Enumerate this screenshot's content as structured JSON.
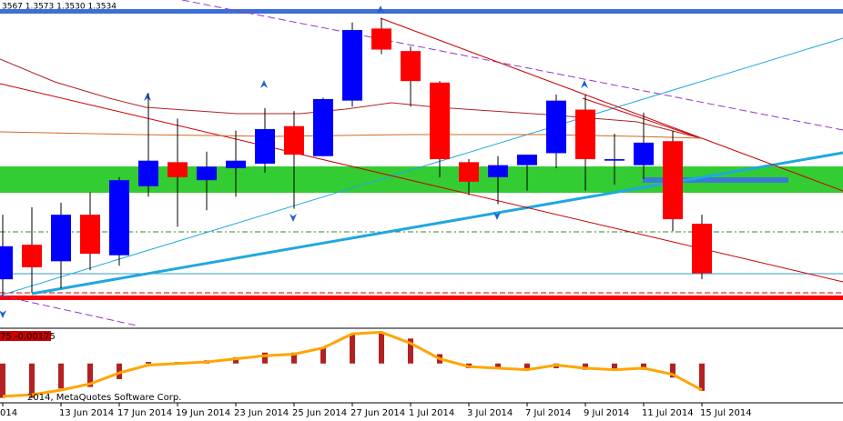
{
  "chart_data": [
    {
      "type": "candlestick",
      "title": "3567 1.3573 1.3530 1.3534",
      "categories": [
        "014",
        null,
        "13 Jun 2014",
        null,
        "17 Jun 2014",
        null,
        "19 Jun 2014",
        null,
        "23 Jun 2014",
        null,
        "25 Jun 2014",
        null,
        "27 Jun 2014",
        null,
        "1 Jul 2014",
        null,
        "3 Jul 2014",
        null,
        "7 Jul 2014",
        null,
        "9 Jul 2014",
        null,
        "11 Jul 2014",
        null,
        "15 Jul 2014"
      ],
      "open": [
        1.353,
        1.3553,
        1.3542,
        1.3573,
        1.3546,
        1.3592,
        1.3608,
        1.3596,
        1.3604,
        1.3607,
        1.3632,
        1.3612,
        1.3649,
        1.3697,
        1.3682,
        1.3661,
        1.3608,
        1.3598,
        1.3606,
        1.3614,
        1.3643,
        1.3609,
        1.3606,
        1.3622,
        1.3567
      ],
      "high": [
        1.3573,
        1.3578,
        1.3581,
        1.3588,
        1.3598,
        1.3654,
        1.3637,
        1.3615,
        1.3629,
        1.3644,
        1.3642,
        1.3651,
        1.3701,
        1.3704,
        1.3685,
        1.3662,
        1.361,
        1.3612,
        1.3613,
        1.3653,
        1.3653,
        1.3627,
        1.3641,
        1.3629,
        1.3573
      ],
      "low": [
        1.3519,
        1.3521,
        1.3524,
        1.3536,
        1.3539,
        1.3585,
        1.3565,
        1.3576,
        1.3585,
        1.3601,
        1.3577,
        1.3612,
        1.3645,
        1.368,
        1.3645,
        1.3598,
        1.3586,
        1.358,
        1.3589,
        1.3604,
        1.3589,
        1.3593,
        1.3597,
        1.3562,
        1.353
      ],
      "close": [
        1.3552,
        1.3538,
        1.3573,
        1.3547,
        1.3596,
        1.3609,
        1.3598,
        1.3605,
        1.3609,
        1.363,
        1.3613,
        1.365,
        1.3696,
        1.3683,
        1.3662,
        1.361,
        1.3595,
        1.3606,
        1.3613,
        1.3649,
        1.361,
        1.361,
        1.3621,
        1.357,
        1.3534
      ],
      "up_color": "#0000ff",
      "down_color": "#ff0000",
      "ylim": [
        1.3498,
        1.3716
      ]
    },
    {
      "type": "bar",
      "title": "75 -0.00175",
      "values": [
        -0.0022,
        -0.0022,
        -0.0016,
        -0.0015,
        -0.001,
        0.0001,
        0.0001,
        0.0002,
        0.0004,
        0.0007,
        0.0007,
        0.001,
        0.0019,
        0.002,
        0.0016,
        0.0006,
        -0.0003,
        -0.0003,
        -0.0003,
        -0.0003,
        -0.0004,
        -0.0004,
        -0.0004,
        -0.0009,
        -0.00175
      ],
      "color": "#b22222",
      "line_values": [
        -0.0021,
        -0.002,
        -0.0017,
        -0.0013,
        -0.0006,
        -0.0001,
        0.0,
        0.0001,
        0.0003,
        0.0005,
        0.0006,
        0.001,
        0.0019,
        0.002,
        0.0013,
        0.0003,
        -0.0002,
        -0.0003,
        -0.0004,
        -0.0001,
        -0.0003,
        -0.0004,
        -0.0003,
        -0.0007,
        -0.0017
      ],
      "line_color": "#ffa500",
      "ylim": [
        -0.0024,
        0.0022
      ]
    }
  ],
  "copyright": "2014, MetaQuotes Software Corp."
}
